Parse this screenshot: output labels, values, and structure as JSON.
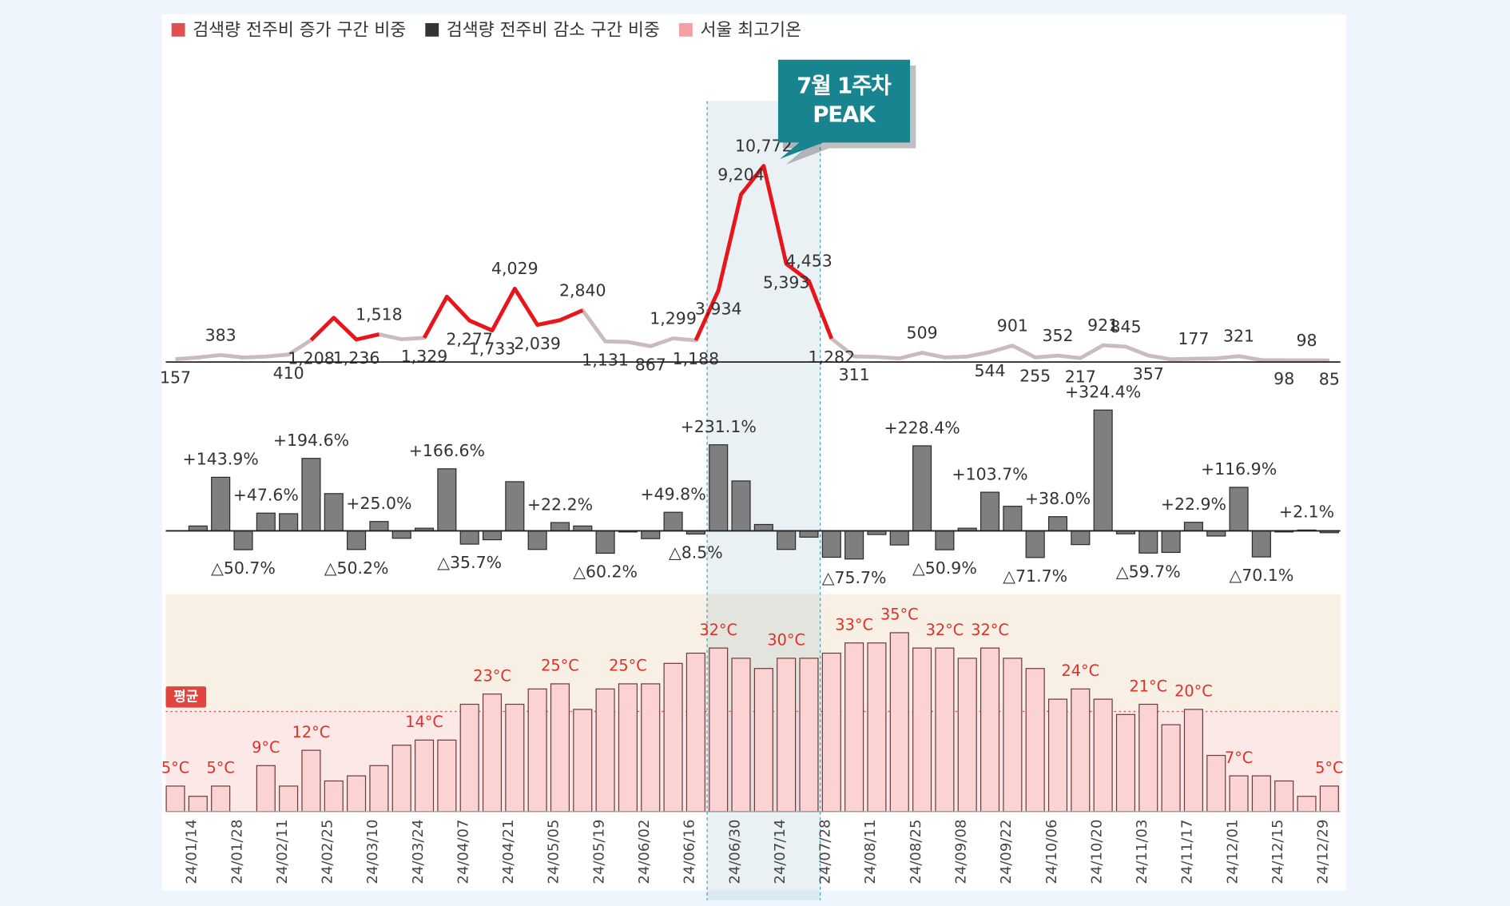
{
  "chart_data": [
    {
      "type": "line",
      "series": [
        {
          "name": "검색량 전주비 증가 구간 비중",
          "color": "#e8161b",
          "base_color": "#cbbcbc",
          "highlight_segments": [
            [
              6,
              9
            ],
            [
              11,
              18
            ],
            [
              23,
              29
            ]
          ],
          "values": [
            157,
            250,
            383,
            250,
            300,
            410,
            1208,
            2430,
            1236,
            1518,
            1250,
            1329,
            3590,
            2277,
            1733,
            4029,
            2039,
            2300,
            2840,
            1131,
            1100,
            867,
            1299,
            1188,
            3934,
            9204,
            10772,
            5393,
            4453,
            1282,
            311,
            280,
            200,
            509,
            250,
            300,
            544,
            901,
            255,
            352,
            217,
            921,
            845,
            357,
            150,
            177,
            200,
            321,
            110,
            98,
            98,
            85
          ],
          "value_labels": [
            "157",
            null,
            "383",
            null,
            null,
            "410",
            "1,208",
            null,
            "1,236",
            "1,518",
            null,
            "1,329",
            null,
            "2,277",
            "1,733",
            "4,029",
            "2,039",
            null,
            "2,840",
            "1,131",
            null,
            "867",
            "1,299",
            "1,188",
            "3,934",
            "9,204",
            "10,772",
            "5,393",
            "4,453",
            "1,282",
            "311",
            null,
            null,
            "509",
            null,
            null,
            "544",
            "901",
            "255",
            "352",
            "217",
            "921",
            "845",
            "357",
            null,
            "177",
            null,
            "321",
            null,
            "98",
            "98",
            "85"
          ]
        }
      ],
      "ylim": [
        0,
        11000
      ],
      "annotation": [
        "7월 1주차",
        "PEAK"
      ],
      "highlight_range": [
        24,
        28
      ]
    },
    {
      "type": "bar",
      "series": [
        {
          "name": "검색량 전주비 감소 구간 비중",
          "color": "#7f7f7f",
          "values": [
            0,
            13,
            143.9,
            -50.7,
            47.6,
            46,
            194.6,
            100,
            -50.2,
            25.0,
            -20,
            7,
            166.6,
            -35.7,
            -24,
            132,
            -50,
            22.2,
            13,
            -60.2,
            -3,
            -21,
            49.8,
            -8.5,
            231.1,
            134,
            17,
            -50,
            -17,
            -71,
            -75.7,
            -10,
            -38,
            228.4,
            -50.9,
            7,
            103.7,
            66,
            -71.7,
            38.0,
            -37,
            324.4,
            -8,
            -59.7,
            -58,
            22.9,
            -14,
            116.9,
            -70.1,
            -3,
            2.1,
            -5
          ],
          "value_labels": [
            null,
            null,
            "+143.9%",
            "△50.7%",
            "+47.6%",
            null,
            "+194.6%",
            null,
            "△50.2%",
            "+25.0%",
            null,
            null,
            "+166.6%",
            "△35.7%",
            null,
            null,
            null,
            "+22.2%",
            null,
            "△60.2%",
            null,
            null,
            "+49.8%",
            "△8.5%",
            "+231.1%",
            null,
            null,
            null,
            null,
            null,
            "△75.7%",
            null,
            null,
            "+228.4%",
            "△50.9%",
            null,
            "+103.7%",
            null,
            "△71.7%",
            "+38.0%",
            null,
            "+324.4%",
            null,
            "△59.7%",
            null,
            "+22.9%",
            null,
            "+116.9%",
            "△70.1%",
            null,
            "+2.1%",
            null
          ]
        }
      ],
      "ylim": [
        -100,
        350
      ]
    },
    {
      "type": "bar",
      "categories": [
        null,
        "24/01/14",
        null,
        "24/01/28",
        null,
        "24/02/11",
        null,
        "24/02/25",
        null,
        "24/03/10",
        null,
        "24/03/24",
        null,
        "24/04/07",
        null,
        "24/04/21",
        null,
        "24/05/05",
        null,
        "24/05/19",
        null,
        "24/06/02",
        null,
        "24/06/16",
        null,
        "24/06/30",
        null,
        "24/07/14",
        null,
        "24/07/28",
        null,
        "24/08/11",
        null,
        "24/08/25",
        null,
        "24/09/08",
        null,
        "24/09/22",
        null,
        "24/10/06",
        null,
        "24/10/20",
        null,
        "24/11/03",
        null,
        "24/11/17",
        null,
        "24/12/01",
        null,
        "24/12/15",
        null,
        "24/12/29"
      ],
      "series": [
        {
          "name": "서울 최고기온",
          "color": "#fbd3d3",
          "values": [
            5,
            3,
            5,
            0,
            9,
            5,
            12,
            6,
            7,
            9,
            13,
            14,
            14,
            21,
            23,
            21,
            24,
            25,
            20,
            24,
            25,
            25,
            29,
            31,
            32,
            30,
            28,
            30,
            30,
            31,
            33,
            33,
            35,
            32,
            32,
            30,
            32,
            30,
            28,
            22,
            24,
            22,
            19,
            21,
            17,
            20,
            11,
            7,
            7,
            6,
            3,
            5
          ],
          "value_labels": [
            "5°C",
            null,
            "5°C",
            null,
            "9°C",
            null,
            "12°C",
            null,
            null,
            null,
            null,
            "14°C",
            null,
            null,
            "23°C",
            null,
            null,
            "25°C",
            null,
            null,
            "25°C",
            null,
            null,
            null,
            "32°C",
            null,
            null,
            "30°C",
            null,
            null,
            "33°C",
            null,
            "35°C",
            null,
            "32°C",
            null,
            "32°C",
            null,
            null,
            null,
            "24°C",
            null,
            null,
            "21°C",
            null,
            "20°C",
            null,
            "7°C",
            null,
            null,
            null,
            "5°C"
          ]
        }
      ],
      "ylim": [
        0,
        40
      ],
      "average": {
        "label": "평균",
        "value": 19.6
      }
    }
  ]
}
